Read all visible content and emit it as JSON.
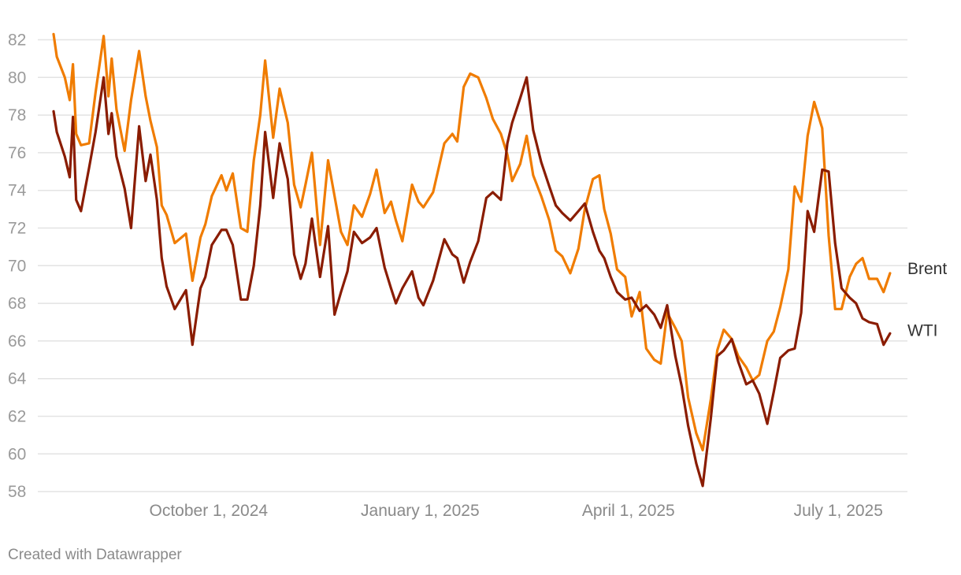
{
  "chart_data": {
    "type": "line",
    "title": "",
    "xlabel": "",
    "ylabel": "",
    "ylim": [
      57,
      83
    ],
    "yticks": [
      58,
      60,
      62,
      64,
      66,
      68,
      70,
      72,
      74,
      76,
      78,
      80,
      82
    ],
    "xticks": [
      {
        "label": "October 1, 2024",
        "week": 9.6
      },
      {
        "label": "January 1, 2025",
        "week": 22.7
      },
      {
        "label": "April 1, 2025",
        "week": 35.6
      },
      {
        "label": "July 1, 2025",
        "week": 48.6
      }
    ],
    "x_unit": "weeks since Aug 1, 2024",
    "grid": true,
    "series": [
      {
        "name": "Brent",
        "color": "#f07c00",
        "x": [
          0,
          0.2,
          0.7,
          1,
          1.2,
          1.4,
          1.7,
          2.2,
          2.6,
          3.1,
          3.4,
          3.6,
          3.9,
          4.4,
          4.8,
          5.3,
          5.7,
          6,
          6.4,
          6.7,
          7,
          7.5,
          8.2,
          8.6,
          9.1,
          9.4,
          9.8,
          10.4,
          10.7,
          11.1,
          11.6,
          12,
          12.4,
          12.8,
          13.1,
          13.6,
          14,
          14.5,
          14.9,
          15.3,
          15.6,
          16,
          16.5,
          17,
          17.4,
          17.8,
          18.2,
          18.6,
          19.1,
          19.6,
          20,
          20.5,
          20.9,
          21.2,
          21.6,
          22.2,
          22.6,
          22.9,
          23.5,
          24.2,
          24.7,
          25,
          25.4,
          25.8,
          26.3,
          26.8,
          27.2,
          27.7,
          28.1,
          28.4,
          28.9,
          29.3,
          29.7,
          30.2,
          30.7,
          31.1,
          31.5,
          32,
          32.5,
          32.9,
          33.4,
          33.8,
          34.1,
          34.5,
          34.9,
          35.4,
          35.8,
          36.3,
          36.7,
          37.2,
          37.6,
          38,
          38.5,
          38.9,
          39.3,
          39.8,
          40.2,
          40.7,
          41.1,
          41.5,
          42,
          42.4,
          42.9,
          43.3,
          43.7,
          44.2,
          44.6,
          45,
          45.5,
          45.9,
          46.3,
          46.7,
          47.1,
          47.6,
          48,
          48.4,
          48.8,
          49.3,
          49.7,
          50.1,
          50.5,
          51,
          51.4,
          51.8
        ],
        "y": [
          82.3,
          81.1,
          80,
          78.8,
          80.7,
          77,
          76.4,
          76.5,
          79.2,
          82.2,
          79,
          81,
          78.3,
          76.1,
          78.8,
          81.4,
          79,
          77.7,
          76.3,
          73.2,
          72.7,
          71.2,
          71.7,
          69.2,
          71.5,
          72.2,
          73.7,
          74.8,
          74,
          74.9,
          72,
          71.8,
          75.6,
          78,
          80.9,
          76.8,
          79.4,
          77.6,
          74.3,
          73.1,
          74.3,
          76,
          71.1,
          75.6,
          73.7,
          71.8,
          71.1,
          73.2,
          72.6,
          73.8,
          75.1,
          72.8,
          73.4,
          72.4,
          71.3,
          74.3,
          73.4,
          73.1,
          73.9,
          76.5,
          77,
          76.6,
          79.5,
          80.2,
          80,
          78.9,
          77.8,
          77,
          75.9,
          74.5,
          75.4,
          76.9,
          74.8,
          73.7,
          72.4,
          70.8,
          70.5,
          69.6,
          70.9,
          73,
          74.6,
          74.8,
          73,
          71.7,
          69.8,
          69.4,
          67.3,
          68.6,
          65.6,
          65,
          64.8,
          67.5,
          66.7,
          66,
          63,
          61.1,
          60.2,
          62.9,
          65.5,
          66.6,
          66.1,
          65.2,
          64.6,
          63.9,
          64.2,
          66,
          66.5,
          67.8,
          69.8,
          74.2,
          73.4,
          76.9,
          78.7,
          77.3,
          71.6,
          67.7,
          67.7,
          69.4,
          70.1,
          70.4,
          69.3,
          69.3,
          68.6,
          69.6
        ]
      },
      {
        "name": "WTI",
        "color": "#8a1c00",
        "x": [
          0,
          0.2,
          0.7,
          1,
          1.2,
          1.4,
          1.7,
          2.2,
          2.6,
          3.1,
          3.4,
          3.6,
          3.9,
          4.4,
          4.8,
          5.3,
          5.7,
          6,
          6.4,
          6.7,
          7,
          7.5,
          8.2,
          8.6,
          9.1,
          9.4,
          9.8,
          10.4,
          10.7,
          11.1,
          11.6,
          12,
          12.4,
          12.8,
          13.1,
          13.6,
          14,
          14.5,
          14.9,
          15.3,
          15.6,
          16,
          16.5,
          17,
          17.4,
          17.8,
          18.2,
          18.6,
          19.1,
          19.6,
          20,
          20.5,
          20.9,
          21.2,
          21.6,
          22.2,
          22.6,
          22.9,
          23.5,
          24.2,
          24.7,
          25,
          25.4,
          25.8,
          26.3,
          26.8,
          27.2,
          27.7,
          28.1,
          28.4,
          28.9,
          29.3,
          29.7,
          30.2,
          30.7,
          31.1,
          31.5,
          32,
          32.5,
          32.9,
          33.4,
          33.8,
          34.1,
          34.5,
          34.9,
          35.4,
          35.8,
          36.3,
          36.7,
          37.2,
          37.6,
          38,
          38.5,
          38.9,
          39.3,
          39.8,
          40.2,
          40.7,
          41.1,
          41.5,
          42,
          42.4,
          42.9,
          43.3,
          43.7,
          44.2,
          44.6,
          45,
          45.5,
          45.9,
          46.3,
          46.7,
          47.1,
          47.6,
          48,
          48.4,
          48.8,
          49.3,
          49.7,
          50.1,
          50.5,
          51,
          51.4,
          51.8
        ],
        "y": [
          78.2,
          77.1,
          75.8,
          74.7,
          77.9,
          73.5,
          72.9,
          75.2,
          77.1,
          80,
          77,
          78.1,
          75.8,
          74.1,
          72,
          77.4,
          74.5,
          75.9,
          73.5,
          70.4,
          68.9,
          67.7,
          68.7,
          65.8,
          68.8,
          69.4,
          71.1,
          71.9,
          71.9,
          71.1,
          68.2,
          68.2,
          70,
          73.2,
          77.1,
          73.6,
          76.5,
          74.6,
          70.6,
          69.3,
          70.1,
          72.5,
          69.4,
          72.1,
          67.4,
          68.6,
          69.7,
          71.8,
          71.2,
          71.5,
          72,
          69.9,
          68.8,
          68,
          68.8,
          69.7,
          68.3,
          67.9,
          69.2,
          71.4,
          70.6,
          70.4,
          69.1,
          70.2,
          71.3,
          73.6,
          73.9,
          73.5,
          76.5,
          77.6,
          78.9,
          80,
          77.2,
          75.5,
          74.2,
          73.2,
          72.8,
          72.4,
          72.9,
          73.3,
          71.8,
          70.8,
          70.4,
          69.4,
          68.6,
          68.2,
          68.3,
          67.6,
          67.9,
          67.4,
          66.7,
          67.9,
          65.2,
          63.6,
          61.5,
          59.5,
          58.3,
          61.9,
          65.2,
          65.5,
          66.1,
          64.9,
          63.7,
          63.9,
          63.2,
          61.6,
          63.3,
          65.1,
          65.5,
          65.6,
          67.5,
          72.9,
          71.8,
          75.1,
          75,
          71.2,
          68.8,
          68.3,
          68,
          67.2,
          67,
          66.9,
          65.8,
          66.4
        ]
      }
    ]
  },
  "credit": "Created with Datawrapper"
}
